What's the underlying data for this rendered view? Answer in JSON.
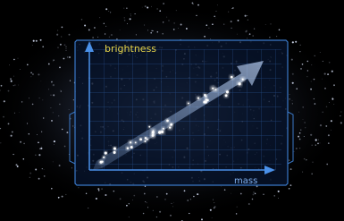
{
  "axes": {
    "y_label": "brightness",
    "x_label": "mass"
  }
}
